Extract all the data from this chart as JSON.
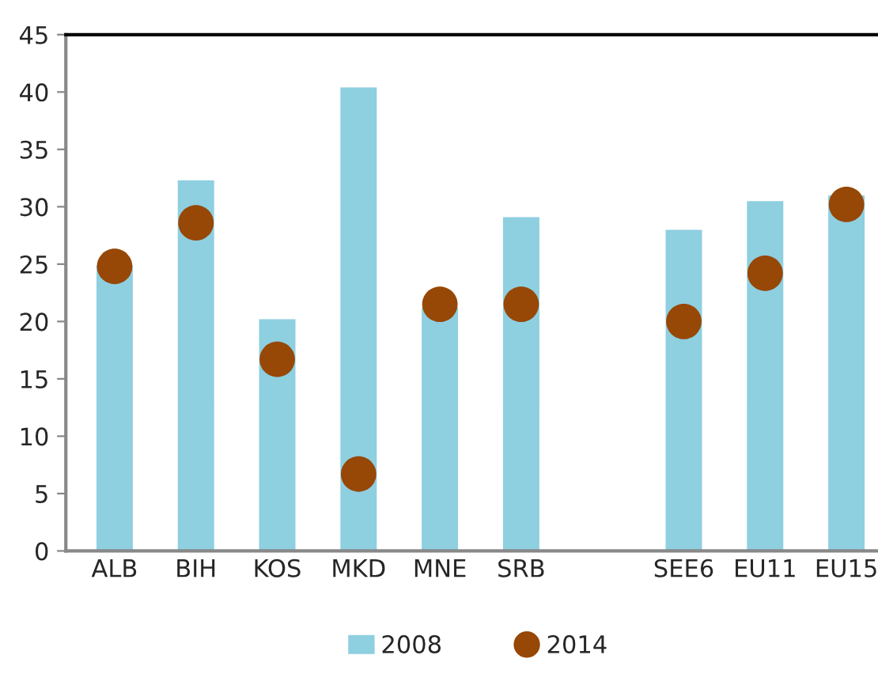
{
  "chart_data": {
    "type": "bar",
    "categories": [
      "ALB",
      "BIH",
      "KOS",
      "MKD",
      "MNE",
      "SRB",
      null,
      "SEE6",
      "EU11",
      "EU15"
    ],
    "series": [
      {
        "name": "2008",
        "color": "#8ecfe0",
        "values": [
          24.8,
          32.2,
          20.1,
          40.3,
          21.1,
          29.0,
          null,
          27.9,
          30.4,
          30.9
        ]
      },
      {
        "name": "2014",
        "type": "scatter",
        "color": "#974706",
        "values": [
          24.8,
          28.6,
          16.7,
          6.7,
          21.5,
          21.5,
          null,
          20.0,
          24.2,
          30.2
        ]
      }
    ],
    "ylim": [
      0,
      45
    ],
    "yticks": [
      0,
      5,
      10,
      15,
      20,
      25,
      30,
      35,
      40,
      45
    ],
    "grid": false,
    "legend": "bottom",
    "marker": "circle"
  }
}
